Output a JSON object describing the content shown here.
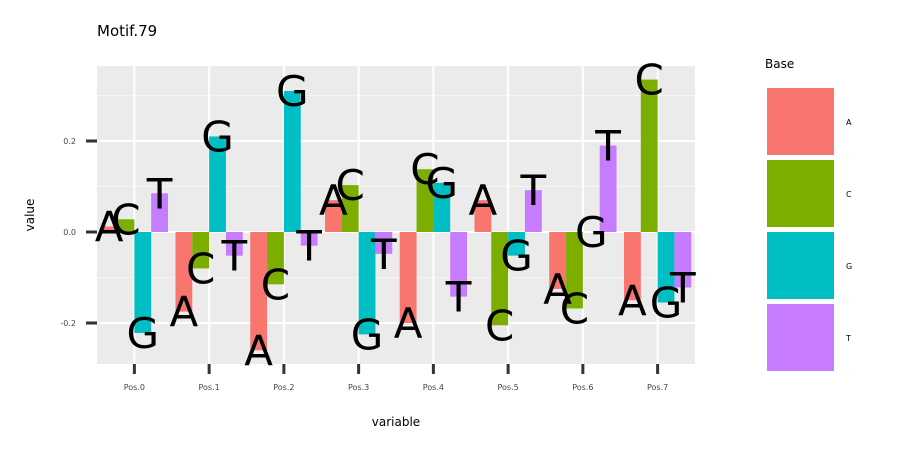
{
  "chart_data": {
    "type": "bar",
    "title": "Motif.79",
    "xlabel": "variable",
    "ylabel": "value",
    "categories": [
      "Pos.0",
      "Pos.1",
      "Pos.2",
      "Pos.3",
      "Pos.4",
      "Pos.5",
      "Pos.6",
      "Pos.7"
    ],
    "yticks": [
      {
        "value": -0.2,
        "label": "-0.2"
      },
      {
        "value": 0.0,
        "label": "0.0"
      },
      {
        "value": 0.2,
        "label": "0.2"
      }
    ],
    "ylim": [
      -0.29,
      0.37
    ],
    "grid": true,
    "legend": {
      "title": "Base",
      "position": "right"
    },
    "series": [
      {
        "name": "A",
        "color": "#F8766D",
        "values": [
          0.012,
          -0.175,
          -0.26,
          0.07,
          -0.2,
          0.07,
          -0.125,
          -0.15
        ]
      },
      {
        "name": "C",
        "color": "#7CAE00",
        "values": [
          0.028,
          -0.08,
          -0.115,
          0.103,
          0.138,
          -0.205,
          -0.168,
          0.335
        ]
      },
      {
        "name": "G",
        "color": "#00BFC4",
        "values": [
          -0.222,
          0.21,
          0.31,
          -0.225,
          0.108,
          -0.052,
          0.0,
          -0.155
        ]
      },
      {
        "name": "T",
        "color": "#C77CFF",
        "values": [
          0.085,
          -0.052,
          -0.03,
          -0.048,
          -0.142,
          0.092,
          0.19,
          -0.122
        ]
      }
    ]
  }
}
